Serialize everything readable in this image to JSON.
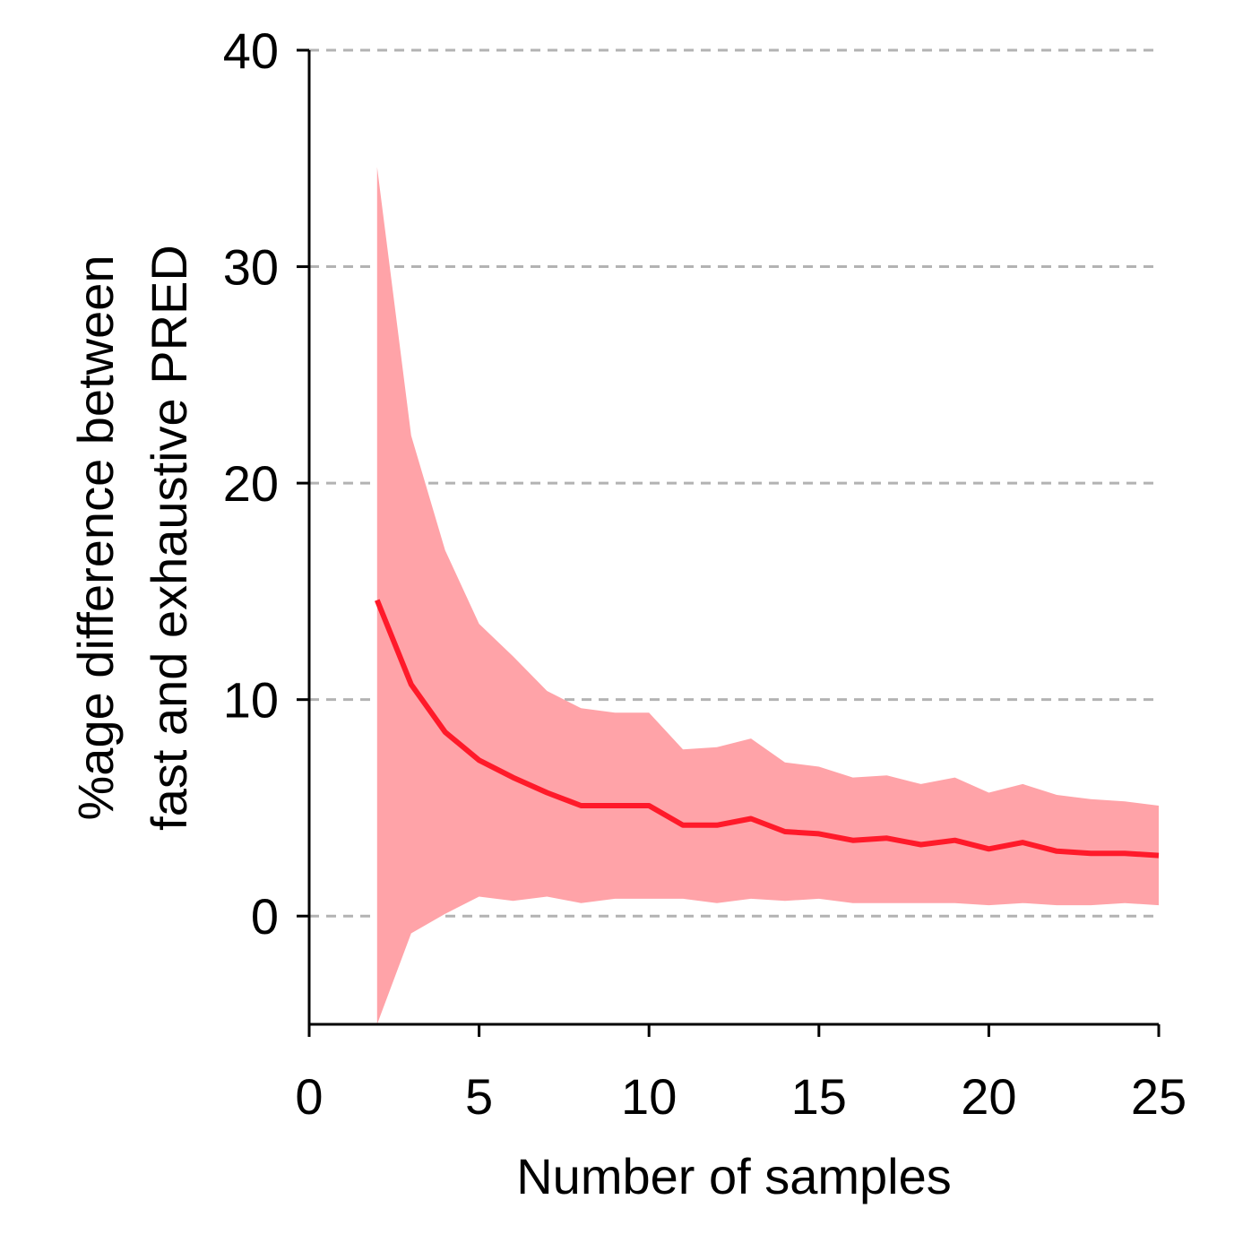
{
  "chart_data": {
    "type": "line",
    "title": "",
    "xlabel": "Number of samples",
    "ylabel_lines": [
      "%age difference between",
      "fast and exhaustive PRED"
    ],
    "xlim": [
      0,
      25
    ],
    "ylim": [
      -5,
      40
    ],
    "xticks": [
      0,
      5,
      10,
      15,
      20,
      25
    ],
    "yticks": [
      0,
      10,
      20,
      30,
      40
    ],
    "grid": "horizontal-dashed",
    "colors": {
      "line": "#ff1a2a",
      "band": "#ffa3a8",
      "grid": "#b3b3b3",
      "axis": "#000000"
    },
    "x": [
      2,
      3,
      4,
      5,
      6,
      7,
      8,
      9,
      10,
      11,
      12,
      13,
      14,
      15,
      16,
      17,
      18,
      19,
      20,
      21,
      22,
      23,
      24,
      25
    ],
    "series": [
      {
        "values": [
          14.6,
          10.7,
          8.5,
          7.2,
          6.4,
          5.7,
          5.1,
          5.1,
          5.1,
          4.2,
          4.2,
          4.5,
          3.9,
          3.8,
          3.5,
          3.6,
          3.3,
          3.5,
          3.1,
          3.4,
          3.0,
          2.9,
          2.9,
          2.8
        ],
        "upper": [
          34.6,
          22.2,
          16.9,
          13.5,
          12.0,
          10.4,
          9.6,
          9.4,
          9.4,
          7.7,
          7.8,
          8.2,
          7.1,
          6.9,
          6.4,
          6.5,
          6.1,
          6.4,
          5.7,
          6.1,
          5.6,
          5.4,
          5.3,
          5.1
        ],
        "lower": [
          -5.0,
          -0.8,
          0.1,
          0.9,
          0.7,
          0.9,
          0.6,
          0.8,
          0.8,
          0.8,
          0.6,
          0.8,
          0.7,
          0.8,
          0.6,
          0.6,
          0.6,
          0.6,
          0.5,
          0.6,
          0.5,
          0.5,
          0.6,
          0.5
        ]
      }
    ]
  }
}
